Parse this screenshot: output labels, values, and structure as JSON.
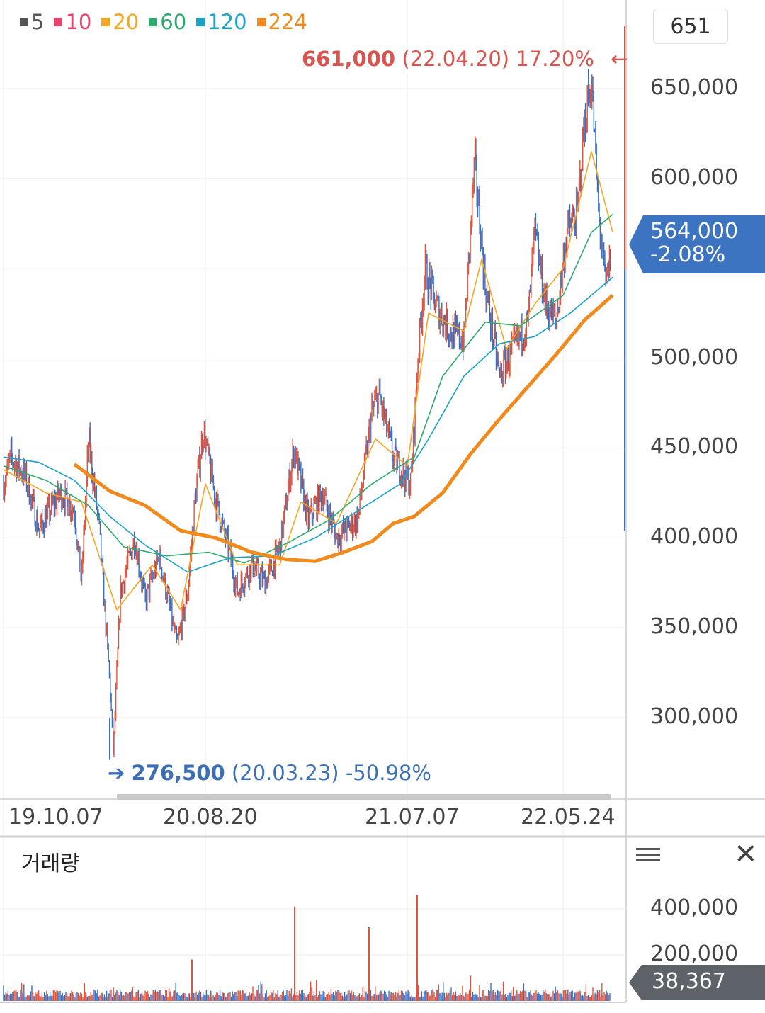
{
  "legend": [
    {
      "label": "5",
      "color": "#555555"
    },
    {
      "label": "10",
      "color": "#e8436b"
    },
    {
      "label": "20",
      "color": "#f5a623"
    },
    {
      "label": "60",
      "color": "#2eaa6e"
    },
    {
      "label": "120",
      "color": "#1aa3c9"
    },
    {
      "label": "224",
      "color": "#f08a1c"
    }
  ],
  "count_box": "651",
  "high_annotation": {
    "price": "661,000",
    "date": "(22.04.20)",
    "pct": "17.20%",
    "arrow": "←"
  },
  "low_annotation": {
    "arrow": "➔",
    "price": "276,500",
    "date": "(20.03.23)",
    "pct": "-50.98%"
  },
  "current_price": {
    "price": "564,000",
    "change": "-2.08%",
    "color": "#3d74c2"
  },
  "volume": {
    "title": "거래량",
    "current": "38,367",
    "badge_color": "#5d6368"
  },
  "chart_data": [
    {
      "type": "candlestick",
      "title": "",
      "y_ticks": [
        "650,000",
        "600,000",
        "500,000",
        "450,000",
        "400,000",
        "350,000",
        "300,000"
      ],
      "y_tick_values": [
        650000,
        600000,
        500000,
        450000,
        400000,
        350000,
        300000
      ],
      "ylim": [
        260000,
        690000
      ],
      "x_ticks": [
        "19.10.07",
        "20.08.20",
        "21.07.07",
        "22.05.24"
      ],
      "close_path": [
        {
          "x": 0,
          "y": 430000
        },
        {
          "x": 10,
          "y": 445000
        },
        {
          "x": 30,
          "y": 435000
        },
        {
          "x": 50,
          "y": 405000
        },
        {
          "x": 80,
          "y": 425000
        },
        {
          "x": 100,
          "y": 415000
        },
        {
          "x": 110,
          "y": 375000
        },
        {
          "x": 120,
          "y": 455000
        },
        {
          "x": 135,
          "y": 405000
        },
        {
          "x": 150,
          "y": 320000
        },
        {
          "x": 155,
          "y": 280000
        },
        {
          "x": 165,
          "y": 370000
        },
        {
          "x": 185,
          "y": 400000
        },
        {
          "x": 200,
          "y": 365000
        },
        {
          "x": 220,
          "y": 390000
        },
        {
          "x": 245,
          "y": 340000
        },
        {
          "x": 260,
          "y": 370000
        },
        {
          "x": 270,
          "y": 420000
        },
        {
          "x": 282,
          "y": 460000
        },
        {
          "x": 300,
          "y": 420000
        },
        {
          "x": 320,
          "y": 390000
        },
        {
          "x": 330,
          "y": 370000
        },
        {
          "x": 350,
          "y": 385000
        },
        {
          "x": 370,
          "y": 375000
        },
        {
          "x": 390,
          "y": 395000
        },
        {
          "x": 410,
          "y": 450000
        },
        {
          "x": 430,
          "y": 410000
        },
        {
          "x": 450,
          "y": 425000
        },
        {
          "x": 470,
          "y": 400000
        },
        {
          "x": 500,
          "y": 410000
        },
        {
          "x": 520,
          "y": 470000
        },
        {
          "x": 530,
          "y": 480000
        },
        {
          "x": 550,
          "y": 445000
        },
        {
          "x": 575,
          "y": 430000
        },
        {
          "x": 585,
          "y": 500000
        },
        {
          "x": 595,
          "y": 550000
        },
        {
          "x": 610,
          "y": 530000
        },
        {
          "x": 630,
          "y": 515000
        },
        {
          "x": 650,
          "y": 510000
        },
        {
          "x": 665,
          "y": 610000
        },
        {
          "x": 680,
          "y": 540000
        },
        {
          "x": 700,
          "y": 490000
        },
        {
          "x": 720,
          "y": 505000
        },
        {
          "x": 740,
          "y": 520000
        },
        {
          "x": 750,
          "y": 570000
        },
        {
          "x": 765,
          "y": 530000
        },
        {
          "x": 780,
          "y": 520000
        },
        {
          "x": 795,
          "y": 570000
        },
        {
          "x": 810,
          "y": 580000
        },
        {
          "x": 820,
          "y": 630000
        },
        {
          "x": 830,
          "y": 655000
        },
        {
          "x": 840,
          "y": 580000
        },
        {
          "x": 850,
          "y": 540000
        },
        {
          "x": 860,
          "y": 564000
        }
      ],
      "ma224_path": [
        {
          "x": 100,
          "y": 441000
        },
        {
          "x": 150,
          "y": 426000
        },
        {
          "x": 200,
          "y": 418000
        },
        {
          "x": 250,
          "y": 404000
        },
        {
          "x": 300,
          "y": 400000
        },
        {
          "x": 350,
          "y": 392000
        },
        {
          "x": 400,
          "y": 388000
        },
        {
          "x": 440,
          "y": 387000
        },
        {
          "x": 480,
          "y": 392000
        },
        {
          "x": 520,
          "y": 398000
        },
        {
          "x": 550,
          "y": 408000
        },
        {
          "x": 580,
          "y": 412000
        },
        {
          "x": 620,
          "y": 425000
        },
        {
          "x": 660,
          "y": 447000
        },
        {
          "x": 700,
          "y": 466000
        },
        {
          "x": 740,
          "y": 484000
        },
        {
          "x": 780,
          "y": 502000
        },
        {
          "x": 820,
          "y": 521000
        },
        {
          "x": 860,
          "y": 535000
        }
      ],
      "ma120_path": [
        {
          "x": 0,
          "y": 445000
        },
        {
          "x": 50,
          "y": 442000
        },
        {
          "x": 100,
          "y": 432000
        },
        {
          "x": 150,
          "y": 412000
        },
        {
          "x": 200,
          "y": 396000
        },
        {
          "x": 260,
          "y": 381000
        },
        {
          "x": 320,
          "y": 389000
        },
        {
          "x": 380,
          "y": 390000
        },
        {
          "x": 440,
          "y": 400000
        },
        {
          "x": 500,
          "y": 415000
        },
        {
          "x": 560,
          "y": 430000
        },
        {
          "x": 600,
          "y": 455000
        },
        {
          "x": 650,
          "y": 490000
        },
        {
          "x": 700,
          "y": 508000
        },
        {
          "x": 750,
          "y": 512000
        },
        {
          "x": 800,
          "y": 525000
        },
        {
          "x": 860,
          "y": 545000
        }
      ],
      "ma60_path": [
        {
          "x": 0,
          "y": 440000
        },
        {
          "x": 60,
          "y": 432000
        },
        {
          "x": 120,
          "y": 418000
        },
        {
          "x": 170,
          "y": 395000
        },
        {
          "x": 230,
          "y": 390000
        },
        {
          "x": 290,
          "y": 392000
        },
        {
          "x": 340,
          "y": 386000
        },
        {
          "x": 400,
          "y": 397000
        },
        {
          "x": 460,
          "y": 410000
        },
        {
          "x": 520,
          "y": 430000
        },
        {
          "x": 580,
          "y": 445000
        },
        {
          "x": 620,
          "y": 490000
        },
        {
          "x": 680,
          "y": 520000
        },
        {
          "x": 730,
          "y": 518000
        },
        {
          "x": 790,
          "y": 535000
        },
        {
          "x": 830,
          "y": 570000
        },
        {
          "x": 860,
          "y": 580000
        }
      ],
      "ma20_path": [
        {
          "x": 0,
          "y": 438000
        },
        {
          "x": 60,
          "y": 425000
        },
        {
          "x": 110,
          "y": 420000
        },
        {
          "x": 160,
          "y": 360000
        },
        {
          "x": 210,
          "y": 385000
        },
        {
          "x": 250,
          "y": 360000
        },
        {
          "x": 285,
          "y": 430000
        },
        {
          "x": 330,
          "y": 385000
        },
        {
          "x": 390,
          "y": 385000
        },
        {
          "x": 420,
          "y": 420000
        },
        {
          "x": 470,
          "y": 408000
        },
        {
          "x": 525,
          "y": 455000
        },
        {
          "x": 570,
          "y": 440000
        },
        {
          "x": 600,
          "y": 525000
        },
        {
          "x": 650,
          "y": 515000
        },
        {
          "x": 675,
          "y": 555000
        },
        {
          "x": 710,
          "y": 505000
        },
        {
          "x": 750,
          "y": 530000
        },
        {
          "x": 790,
          "y": 550000
        },
        {
          "x": 830,
          "y": 615000
        },
        {
          "x": 860,
          "y": 570000
        }
      ]
    },
    {
      "type": "bar",
      "title": "거래량",
      "y_ticks": [
        "400,000",
        "200,000"
      ],
      "y_tick_values": [
        400000,
        200000
      ],
      "ylim": [
        0,
        470000
      ],
      "spikes": [
        {
          "x": 114,
          "v": 80000
        },
        {
          "x": 266,
          "v": 180000
        },
        {
          "x": 411,
          "v": 410000
        },
        {
          "x": 442,
          "v": 90000
        },
        {
          "x": 516,
          "v": 320000
        },
        {
          "x": 584,
          "v": 460000
        },
        {
          "x": 659,
          "v": 110000
        },
        {
          "x": 720,
          "v": 60000
        }
      ],
      "baseline_volume": [
        15000,
        50000
      ]
    }
  ]
}
